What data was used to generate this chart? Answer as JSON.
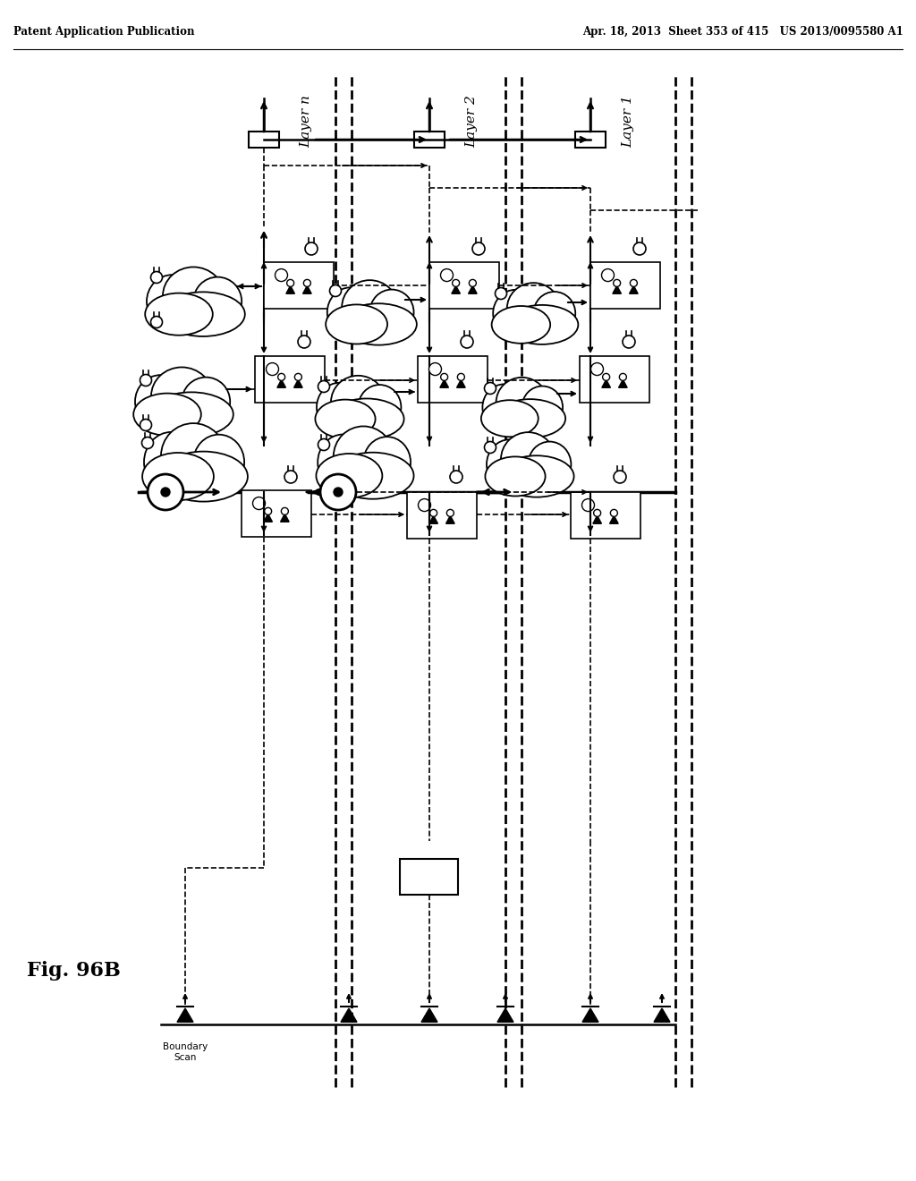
{
  "title_left": "Patent Application Publication",
  "title_right": "Apr. 18, 2013  Sheet 353 of 415   US 2013/0095580 A1",
  "fig_label": "Fig. 96B",
  "background_color": "#ffffff",
  "line_color": "#000000"
}
